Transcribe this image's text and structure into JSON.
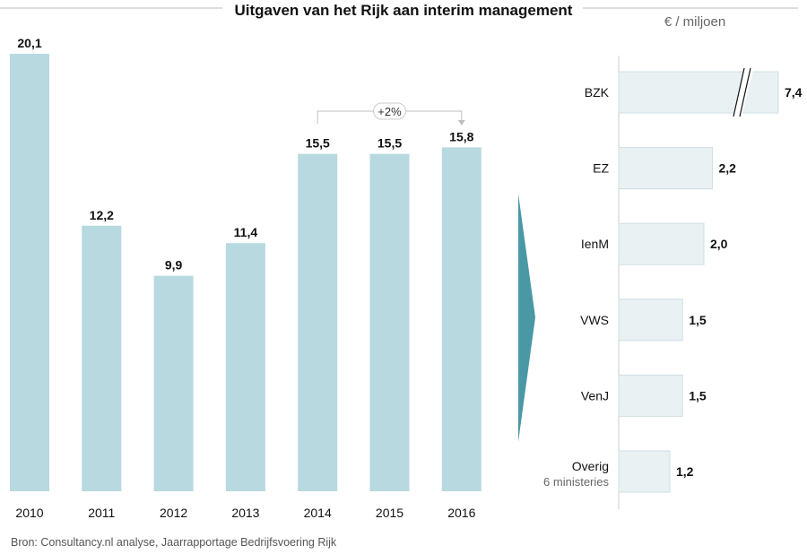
{
  "title": "Uitgaven van het Rijk aan interim management",
  "unit_label": "€ / miljoen",
  "source": "Bron: Consultancy.nl analyse, Jaarrapportage Bedrijfsvoering Rijk",
  "colors": {
    "left_bar": "#b7d9df",
    "right_bar": "#e9f1f3",
    "right_bar_border": "#cfdfe3",
    "arrow": "#4a97a5",
    "rule": "#bbbbbb"
  },
  "chart_data": [
    {
      "type": "bar",
      "title": "Uitgaven van het Rijk aan interim management",
      "categories": [
        "2010",
        "2011",
        "2012",
        "2013",
        "2014",
        "2015",
        "2016"
      ],
      "values": [
        20.1,
        12.2,
        9.9,
        11.4,
        15.5,
        15.5,
        15.8
      ],
      "value_labels": [
        "20,1",
        "12,2",
        "9,9",
        "11,4",
        "15,5",
        "15,5",
        "15,8"
      ],
      "ylim": [
        0,
        20.1
      ],
      "grid": false,
      "annotation": {
        "text": "+2%",
        "from": "2014",
        "to": "2016"
      }
    },
    {
      "type": "bar",
      "orientation": "horizontal",
      "unit": "€ / miljoen",
      "categories": [
        "BZK",
        "EZ",
        "IenM",
        "VWS",
        "VenJ",
        "Overig"
      ],
      "sublabels": [
        "",
        "",
        "",
        "",
        "",
        "6 ministeries"
      ],
      "values": [
        7.4,
        2.2,
        2.0,
        1.5,
        1.5,
        1.2
      ],
      "value_labels": [
        "7,4",
        "2,2",
        "2,0",
        "1,5",
        "1,5",
        "1,2"
      ],
      "broken_axis": "BZK",
      "grid": false
    }
  ]
}
